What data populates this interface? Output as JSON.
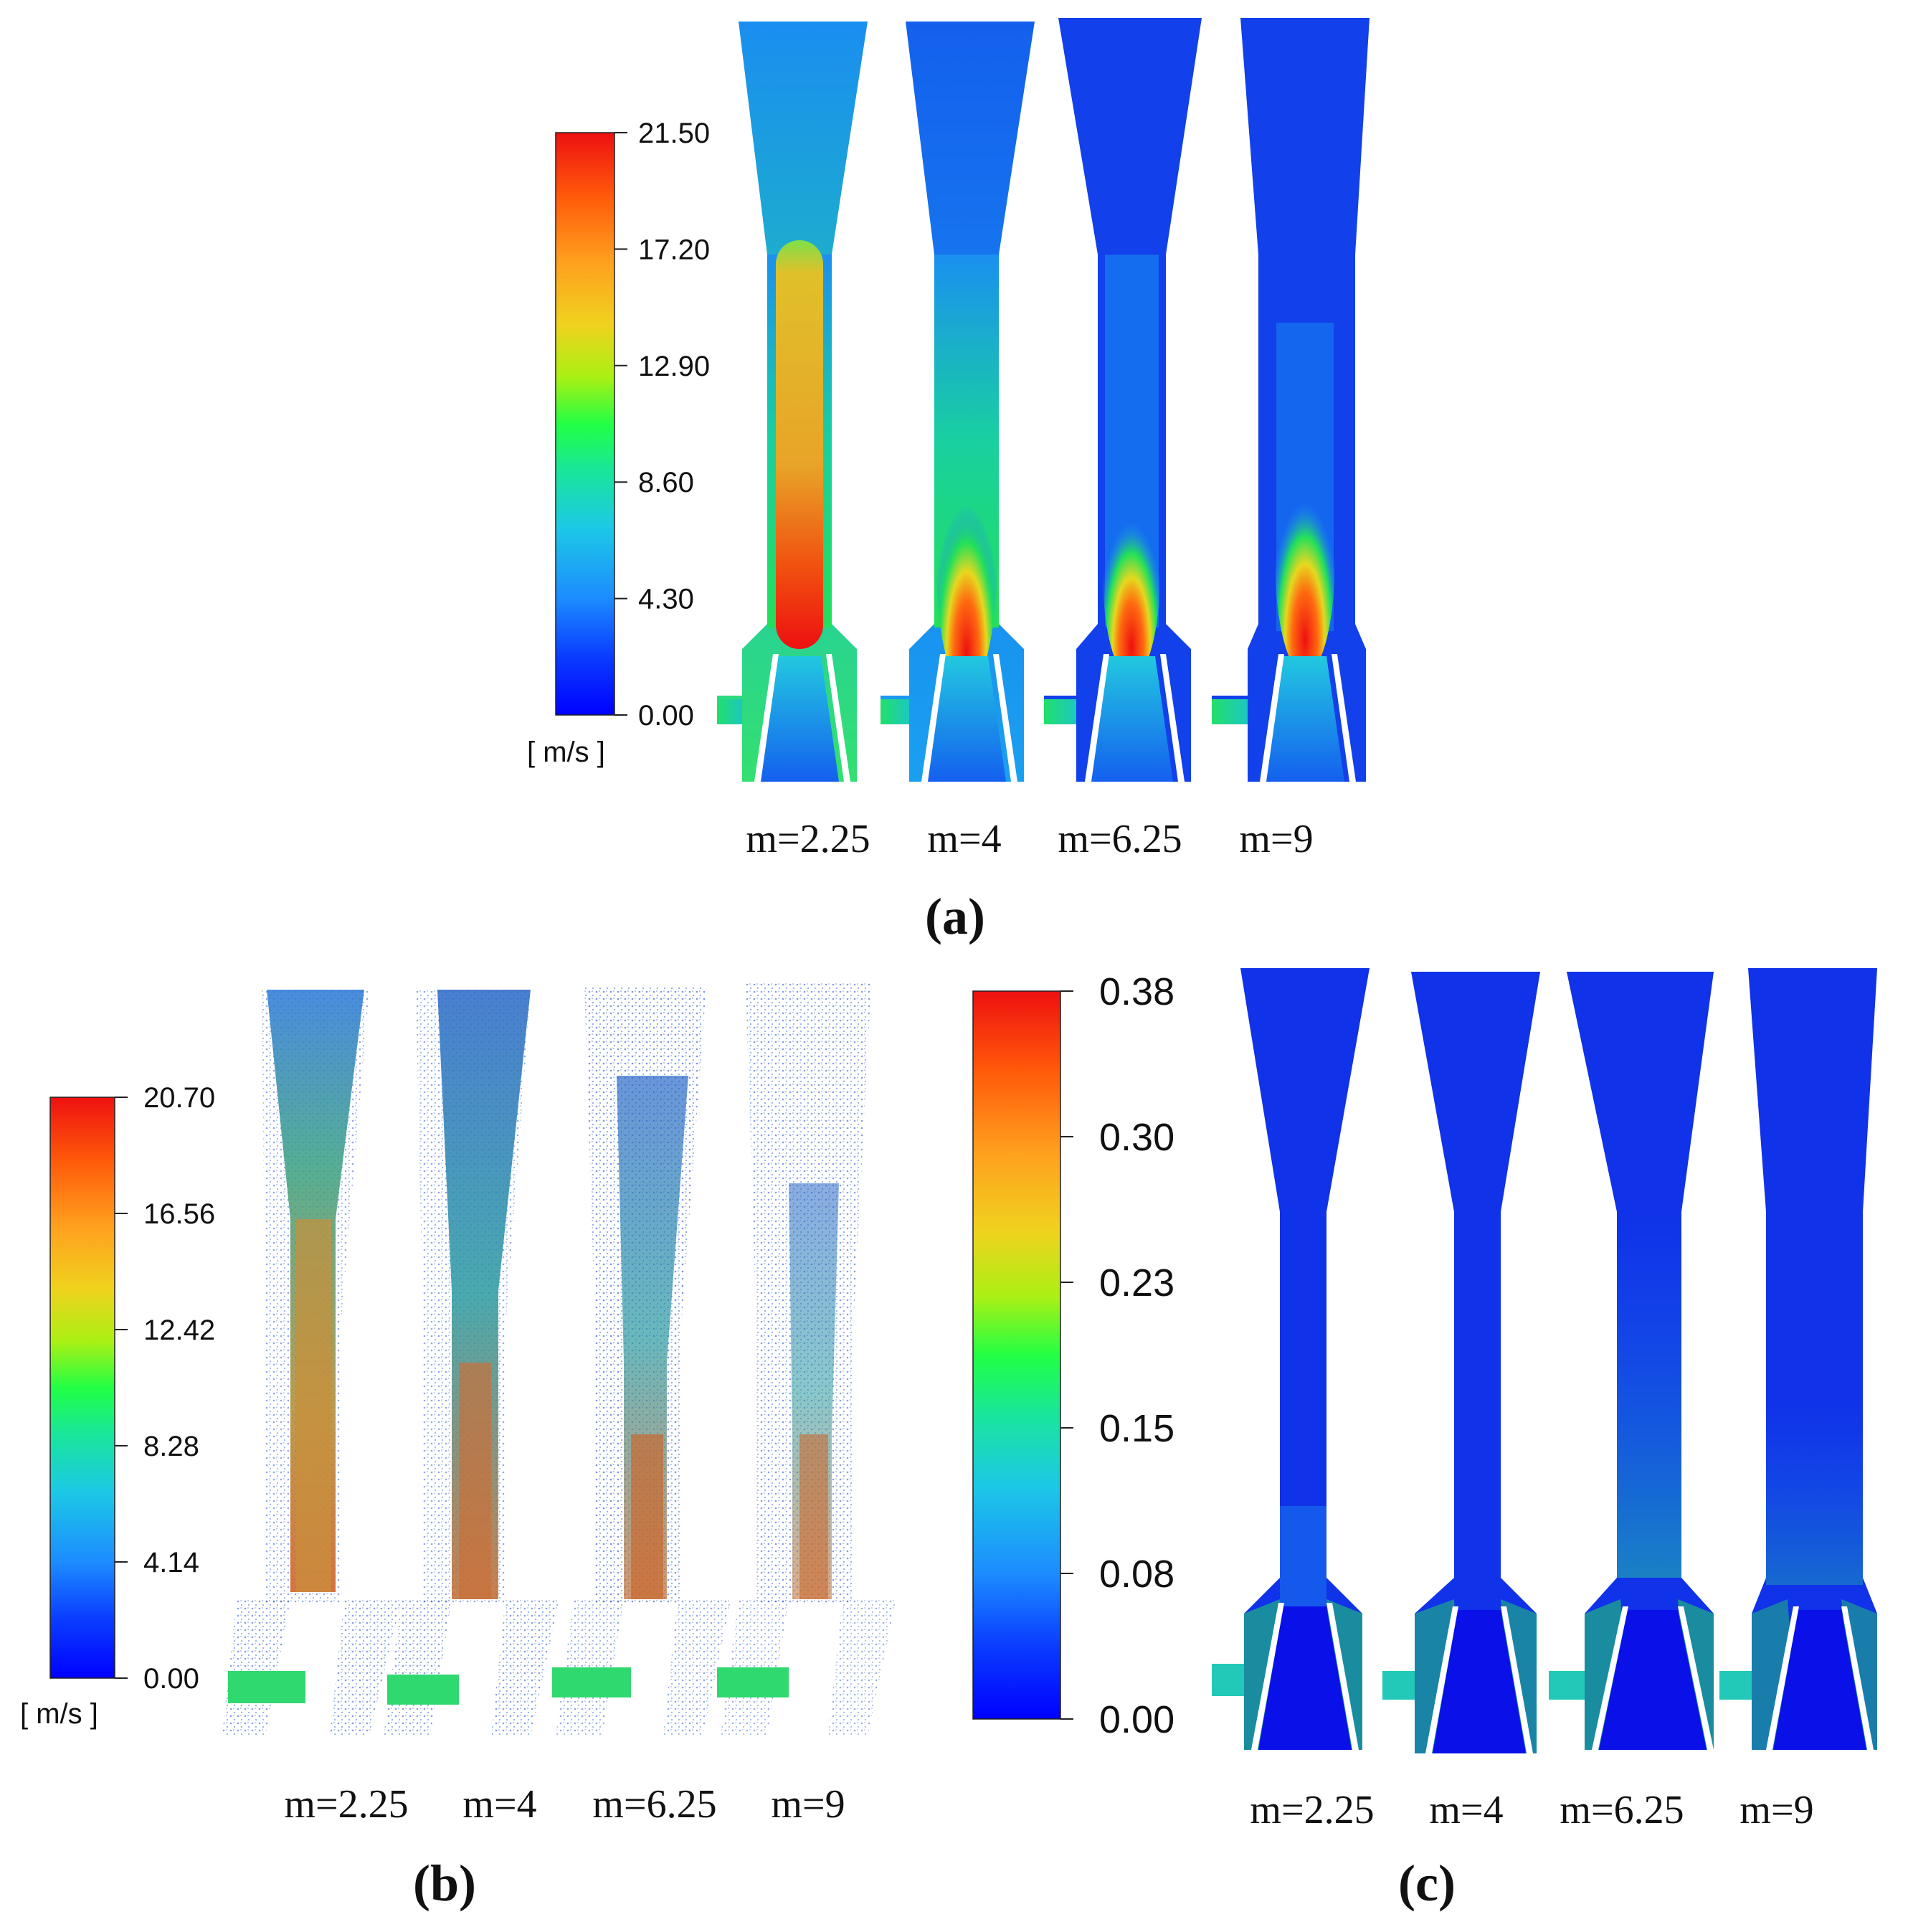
{
  "colors": {
    "jet": [
      "#0000ff",
      "#0a3cff",
      "#1c8cff",
      "#1cc8e6",
      "#19e69a",
      "#22ff44",
      "#aaf014",
      "#f0d21e",
      "#ff9f1e",
      "#ff5a0a",
      "#ee1010"
    ],
    "flow_background": "#1432e6"
  },
  "panels": [
    {
      "id": "a",
      "label": "(a)",
      "colorbar": {
        "ticks": [
          "21.50",
          "17.20",
          "12.90",
          "8.60",
          "4.30",
          "0.00"
        ],
        "unit": "[ m/s ]"
      },
      "cases": [
        "m=2.25",
        "m=4",
        "m=6.25",
        "m=9"
      ]
    },
    {
      "id": "b",
      "label": "(b)",
      "colorbar": {
        "ticks": [
          "20.70",
          "16.56",
          "12.42",
          "8.28",
          "4.14",
          "0.00"
        ],
        "unit": "[ m/s ]"
      },
      "cases": [
        "m=2.25",
        "m=4",
        "m=6.25",
        "m=9"
      ]
    },
    {
      "id": "c",
      "label": "(c)",
      "colorbar": {
        "ticks": [
          "0.38",
          "0.30",
          "0.23",
          "0.15",
          "0.08",
          "0.00"
        ],
        "unit": ""
      },
      "cases": [
        "m=2.25",
        "m=4",
        "m=6.25",
        "m=9"
      ]
    }
  ]
}
